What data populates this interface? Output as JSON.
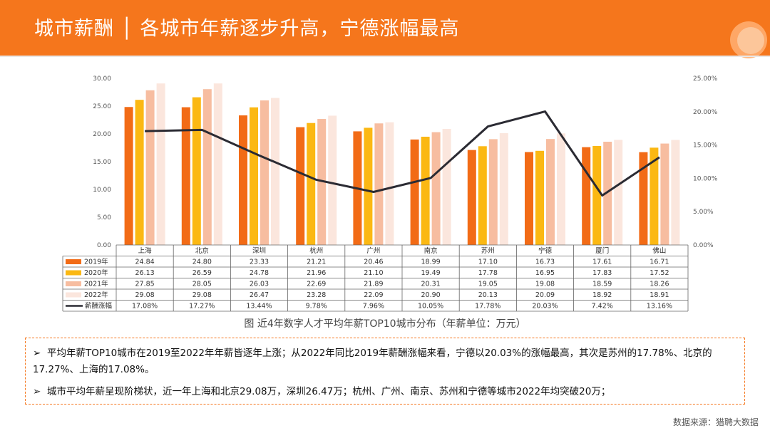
{
  "header": {
    "title": "城市薪酬 │ 各城市年薪逐步升高，宁德涨幅最高"
  },
  "chart_data": {
    "type": "bar",
    "categories": [
      "上海",
      "北京",
      "深圳",
      "杭州",
      "广州",
      "南京",
      "苏州",
      "宁德",
      "厦门",
      "佛山"
    ],
    "series": [
      {
        "name": "2019年",
        "color": "#f26b16",
        "values": [
          24.84,
          24.8,
          23.33,
          21.21,
          20.46,
          18.99,
          17.1,
          16.73,
          17.61,
          16.71
        ],
        "labels": [
          "24.84",
          "24.80",
          "23.33",
          "21.21",
          "20.46",
          "18.99",
          "17.10",
          "16.73",
          "17.61",
          "16.71"
        ]
      },
      {
        "name": "2020年",
        "color": "#fbb813",
        "values": [
          26.13,
          26.59,
          24.78,
          21.96,
          21.1,
          19.49,
          17.78,
          16.95,
          17.83,
          17.52
        ],
        "labels": [
          "26.13",
          "26.59",
          "24.78",
          "21.96",
          "21.10",
          "19.49",
          "17.78",
          "16.95",
          "17.83",
          "17.52"
        ]
      },
      {
        "name": "2021年",
        "color": "#f7bda0",
        "values": [
          27.85,
          28.05,
          26.03,
          22.69,
          21.89,
          20.31,
          19.05,
          19.08,
          18.59,
          18.26
        ],
        "labels": [
          "27.85",
          "28.05",
          "26.03",
          "22.69",
          "21.89",
          "20.31",
          "19.05",
          "19.08",
          "18.59",
          "18.26"
        ]
      },
      {
        "name": "2022年",
        "color": "#fbe6dd",
        "values": [
          29.08,
          29.08,
          26.47,
          23.28,
          22.09,
          20.9,
          20.13,
          20.09,
          18.92,
          18.91
        ],
        "labels": [
          "29.08",
          "29.08",
          "26.47",
          "23.28",
          "22.09",
          "20.90",
          "20.13",
          "20.09",
          "18.92",
          "18.91"
        ]
      }
    ],
    "line": {
      "name": "薪酬涨幅",
      "color": "#2b2b33",
      "values": [
        17.08,
        17.27,
        13.44,
        9.78,
        7.96,
        10.05,
        17.78,
        20.03,
        7.42,
        13.16
      ],
      "labels": [
        "17.08%",
        "17.27%",
        "13.44%",
        "9.78%",
        "7.96%",
        "10.05%",
        "17.78%",
        "20.03%",
        "7.42%",
        "13.16%"
      ]
    },
    "left_axis": {
      "ylim": [
        0,
        30
      ],
      "ticks": [
        "0.00",
        "5.00",
        "10.00",
        "15.00",
        "20.00",
        "25.00",
        "30.00"
      ]
    },
    "right_axis": {
      "ylim": [
        0,
        25
      ],
      "ticks": [
        "0.00%",
        "5.00%",
        "10.00%",
        "15.00%",
        "20.00%",
        "25.00%"
      ]
    },
    "title": "图 近4年数字人才平均年薪TOP10城市分布（年薪单位：万元）",
    "grid": false,
    "legend": "table-below"
  },
  "summary": {
    "bullet1": "平均年薪TOP10城市在2019至2022年年薪皆逐年上涨；从2022年同比2019年薪酬涨幅来看，宁德以20.03%的涨幅最高，其次是苏州的17.78%、北京的17.27%、上海的17.08%。",
    "bullet2": "城市平均年薪呈现阶梯状，近一年上海和北京29.08万，深圳26.47万；杭州、广州、南京、苏州和宁德等城市2022年均突破20万；",
    "arrow": "➢"
  },
  "source": "数据来源：猎聘大数据"
}
